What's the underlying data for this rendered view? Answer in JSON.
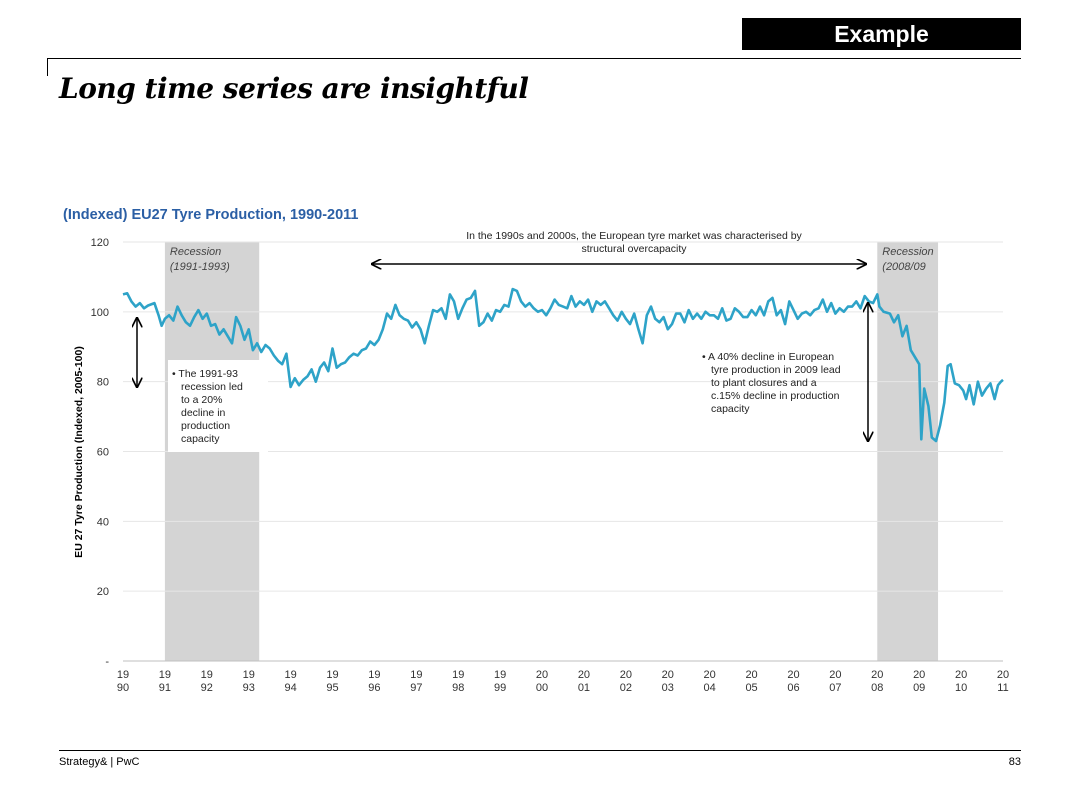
{
  "badge": "Example",
  "title": "Long time series are insightful",
  "footer": {
    "source": "Strategy& | PwC",
    "page": "83"
  },
  "chart_data": {
    "type": "line",
    "title": "(Indexed) EU27 Tyre Production, 1990-2011",
    "ylabel": "EU 27 Tyre Production (Indexed, 2005-100)",
    "xlabel": "",
    "ylim": [
      0,
      120
    ],
    "y_ticks": [
      {
        "value": 0,
        "label": "-"
      },
      {
        "value": 20,
        "label": "20"
      },
      {
        "value": 40,
        "label": "40"
      },
      {
        "value": 60,
        "label": "60"
      },
      {
        "value": 80,
        "label": "80"
      },
      {
        "value": 100,
        "label": "100"
      },
      {
        "value": 120,
        "label": "120"
      }
    ],
    "x_ticks": [
      {
        "year": 1990,
        "top": "19",
        "bottom": "90"
      },
      {
        "year": 1991,
        "top": "19",
        "bottom": "91"
      },
      {
        "year": 1992,
        "top": "19",
        "bottom": "92"
      },
      {
        "year": 1993,
        "top": "19",
        "bottom": "93"
      },
      {
        "year": 1994,
        "top": "19",
        "bottom": "94"
      },
      {
        "year": 1995,
        "top": "19",
        "bottom": "95"
      },
      {
        "year": 1996,
        "top": "19",
        "bottom": "96"
      },
      {
        "year": 1997,
        "top": "19",
        "bottom": "97"
      },
      {
        "year": 1998,
        "top": "19",
        "bottom": "98"
      },
      {
        "year": 1999,
        "top": "19",
        "bottom": "99"
      },
      {
        "year": 2000,
        "top": "20",
        "bottom": "00"
      },
      {
        "year": 2001,
        "top": "20",
        "bottom": "01"
      },
      {
        "year": 2002,
        "top": "20",
        "bottom": "02"
      },
      {
        "year": 2003,
        "top": "20",
        "bottom": "03"
      },
      {
        "year": 2004,
        "top": "20",
        "bottom": "04"
      },
      {
        "year": 2005,
        "top": "20",
        "bottom": "05"
      },
      {
        "year": 2006,
        "top": "20",
        "bottom": "06"
      },
      {
        "year": 2007,
        "top": "20",
        "bottom": "07"
      },
      {
        "year": 2008,
        "top": "20",
        "bottom": "08"
      },
      {
        "year": 2009,
        "top": "20",
        "bottom": "09"
      },
      {
        "year": 2010,
        "top": "20",
        "bottom": "10"
      },
      {
        "year": 2011,
        "top": "20",
        "bottom": "11"
      }
    ],
    "recessions": [
      {
        "label1": "Recession",
        "label2": "(1991-1993)",
        "start": 1991.0,
        "end": 1993.25
      },
      {
        "label1": "Recession",
        "label2": "(2008/09",
        "start": 2008.0,
        "end": 2009.45
      }
    ],
    "series": [
      {
        "name": "EU27 Tyre Production",
        "color": "#2ea3c8",
        "points": [
          [
            1990.0,
            105
          ],
          [
            1990.1,
            105.3
          ],
          [
            1990.2,
            103
          ],
          [
            1990.3,
            101.5
          ],
          [
            1990.4,
            102.5
          ],
          [
            1990.5,
            101
          ],
          [
            1990.6,
            101.8
          ],
          [
            1990.75,
            102.5
          ],
          [
            1990.85,
            99
          ],
          [
            1990.92,
            96
          ],
          [
            1991.0,
            98
          ],
          [
            1991.1,
            99
          ],
          [
            1991.2,
            97.5
          ],
          [
            1991.3,
            101.5
          ],
          [
            1991.4,
            99
          ],
          [
            1991.5,
            97
          ],
          [
            1991.6,
            96
          ],
          [
            1991.7,
            98.5
          ],
          [
            1991.8,
            100.5
          ],
          [
            1991.9,
            98
          ],
          [
            1992.0,
            99.5
          ],
          [
            1992.1,
            96
          ],
          [
            1992.2,
            96.5
          ],
          [
            1992.3,
            93.5
          ],
          [
            1992.4,
            95
          ],
          [
            1992.5,
            93
          ],
          [
            1992.6,
            91
          ],
          [
            1992.7,
            98.5
          ],
          [
            1992.8,
            96
          ],
          [
            1992.9,
            92
          ],
          [
            1993.0,
            95
          ],
          [
            1993.1,
            89
          ],
          [
            1993.2,
            91
          ],
          [
            1993.3,
            88.5
          ],
          [
            1993.4,
            90.5
          ],
          [
            1993.5,
            89.5
          ],
          [
            1993.6,
            87.5
          ],
          [
            1993.7,
            86
          ],
          [
            1993.8,
            85
          ],
          [
            1993.9,
            88
          ],
          [
            1994.0,
            78.5
          ],
          [
            1994.1,
            81
          ],
          [
            1994.2,
            79
          ],
          [
            1994.3,
            80.5
          ],
          [
            1994.4,
            81.5
          ],
          [
            1994.5,
            83.5
          ],
          [
            1994.6,
            80
          ],
          [
            1994.7,
            84
          ],
          [
            1994.8,
            85.5
          ],
          [
            1994.9,
            83
          ],
          [
            1995.0,
            89.5
          ],
          [
            1995.1,
            84
          ],
          [
            1995.2,
            85
          ],
          [
            1995.3,
            85.5
          ],
          [
            1995.4,
            87
          ],
          [
            1995.5,
            88
          ],
          [
            1995.6,
            87.5
          ],
          [
            1995.7,
            89
          ],
          [
            1995.8,
            89.5
          ],
          [
            1995.9,
            91.5
          ],
          [
            1996.0,
            90.5
          ],
          [
            1996.1,
            92
          ],
          [
            1996.2,
            95
          ],
          [
            1996.3,
            99.5
          ],
          [
            1996.4,
            98
          ],
          [
            1996.5,
            102
          ],
          [
            1996.6,
            99
          ],
          [
            1996.7,
            98
          ],
          [
            1996.8,
            97.5
          ],
          [
            1996.9,
            95.5
          ],
          [
            1997.0,
            97
          ],
          [
            1997.1,
            95
          ],
          [
            1997.2,
            91
          ],
          [
            1997.3,
            96
          ],
          [
            1997.4,
            100.5
          ],
          [
            1997.5,
            100
          ],
          [
            1997.6,
            101
          ],
          [
            1997.7,
            98
          ],
          [
            1997.8,
            105
          ],
          [
            1997.9,
            103
          ],
          [
            1998.0,
            98
          ],
          [
            1998.1,
            101
          ],
          [
            1998.2,
            103.5
          ],
          [
            1998.3,
            104
          ],
          [
            1998.4,
            106
          ],
          [
            1998.5,
            96
          ],
          [
            1998.6,
            97
          ],
          [
            1998.7,
            99.5
          ],
          [
            1998.8,
            97.5
          ],
          [
            1998.9,
            100.5
          ],
          [
            1999.0,
            100
          ],
          [
            1999.1,
            102
          ],
          [
            1999.2,
            101.5
          ],
          [
            1999.3,
            106.5
          ],
          [
            1999.4,
            106
          ],
          [
            1999.5,
            103
          ],
          [
            1999.6,
            101.5
          ],
          [
            1999.7,
            102.5
          ],
          [
            1999.8,
            101
          ],
          [
            1999.9,
            100
          ],
          [
            2000.0,
            100.5
          ],
          [
            2000.1,
            99
          ],
          [
            2000.2,
            101
          ],
          [
            2000.3,
            103.5
          ],
          [
            2000.4,
            102
          ],
          [
            2000.5,
            101.5
          ],
          [
            2000.6,
            101
          ],
          [
            2000.7,
            104.5
          ],
          [
            2000.8,
            101.5
          ],
          [
            2000.9,
            103
          ],
          [
            2001.0,
            102
          ],
          [
            2001.1,
            103.5
          ],
          [
            2001.2,
            100
          ],
          [
            2001.3,
            103
          ],
          [
            2001.4,
            102
          ],
          [
            2001.5,
            103
          ],
          [
            2001.6,
            101
          ],
          [
            2001.7,
            99
          ],
          [
            2001.8,
            97.5
          ],
          [
            2001.9,
            100
          ],
          [
            2002.0,
            98
          ],
          [
            2002.1,
            96.5
          ],
          [
            2002.2,
            99.5
          ],
          [
            2002.3,
            95
          ],
          [
            2002.4,
            91
          ],
          [
            2002.5,
            99
          ],
          [
            2002.6,
            101.5
          ],
          [
            2002.7,
            98
          ],
          [
            2002.8,
            97
          ],
          [
            2002.9,
            98.5
          ],
          [
            2003.0,
            95
          ],
          [
            2003.1,
            96.5
          ],
          [
            2003.2,
            99.5
          ],
          [
            2003.3,
            99.5
          ],
          [
            2003.4,
            97
          ],
          [
            2003.5,
            100.5
          ],
          [
            2003.6,
            98
          ],
          [
            2003.7,
            99.5
          ],
          [
            2003.8,
            98
          ],
          [
            2003.9,
            100
          ],
          [
            2004.0,
            99
          ],
          [
            2004.1,
            99
          ],
          [
            2004.2,
            98
          ],
          [
            2004.3,
            101
          ],
          [
            2004.4,
            97.5
          ],
          [
            2004.5,
            98
          ],
          [
            2004.6,
            101
          ],
          [
            2004.7,
            100
          ],
          [
            2004.8,
            98.5
          ],
          [
            2004.9,
            98.5
          ],
          [
            2005.0,
            100.5
          ],
          [
            2005.1,
            99
          ],
          [
            2005.2,
            101.5
          ],
          [
            2005.3,
            99
          ],
          [
            2005.4,
            103
          ],
          [
            2005.5,
            104
          ],
          [
            2005.6,
            99
          ],
          [
            2005.7,
            100.5
          ],
          [
            2005.8,
            96.5
          ],
          [
            2005.9,
            103
          ],
          [
            2006.0,
            100.5
          ],
          [
            2006.1,
            98
          ],
          [
            2006.2,
            99.5
          ],
          [
            2006.3,
            100
          ],
          [
            2006.4,
            99
          ],
          [
            2006.5,
            100.5
          ],
          [
            2006.6,
            101
          ],
          [
            2006.7,
            103.5
          ],
          [
            2006.8,
            100
          ],
          [
            2006.9,
            102.5
          ],
          [
            2007.0,
            99.5
          ],
          [
            2007.1,
            101
          ],
          [
            2007.2,
            100
          ],
          [
            2007.3,
            101.5
          ],
          [
            2007.4,
            101.5
          ],
          [
            2007.5,
            103
          ],
          [
            2007.6,
            101
          ],
          [
            2007.7,
            104.5
          ],
          [
            2007.8,
            103
          ],
          [
            2007.9,
            102.5
          ],
          [
            2008.0,
            105
          ],
          [
            2008.05,
            101.5
          ],
          [
            2008.15,
            100
          ],
          [
            2008.3,
            99.5
          ],
          [
            2008.4,
            97
          ],
          [
            2008.5,
            99
          ],
          [
            2008.6,
            93
          ],
          [
            2008.7,
            96
          ],
          [
            2008.8,
            89
          ],
          [
            2008.9,
            87
          ],
          [
            2009.0,
            85
          ],
          [
            2009.05,
            63.5
          ],
          [
            2009.12,
            78
          ],
          [
            2009.22,
            73
          ],
          [
            2009.3,
            64
          ],
          [
            2009.4,
            63
          ],
          [
            2009.5,
            67.5
          ],
          [
            2009.6,
            74
          ],
          [
            2009.68,
            84.5
          ],
          [
            2009.75,
            85
          ],
          [
            2009.85,
            79.5
          ],
          [
            2009.95,
            79
          ],
          [
            2010.05,
            77.5
          ],
          [
            2010.12,
            75
          ],
          [
            2010.2,
            79
          ],
          [
            2010.3,
            73.5
          ],
          [
            2010.4,
            80
          ],
          [
            2010.5,
            76
          ],
          [
            2010.6,
            78
          ],
          [
            2010.7,
            79.5
          ],
          [
            2010.8,
            75
          ],
          [
            2010.88,
            79
          ],
          [
            2010.95,
            80
          ],
          [
            2011.0,
            80.5
          ]
        ]
      }
    ],
    "annotations": {
      "top": [
        "In the 1990s and 2000s, the European tyre market was characterised by",
        "structural overcapacity"
      ],
      "left": [
        "•  The 1991-93",
        "recession led",
        "to a 20%",
        "decline in",
        "production",
        "capacity"
      ],
      "right": [
        "•  A 40% decline in European",
        "tyre production in 2009 lead",
        "to plant closures and a",
        "c.15% decline in production",
        "capacity"
      ]
    }
  }
}
